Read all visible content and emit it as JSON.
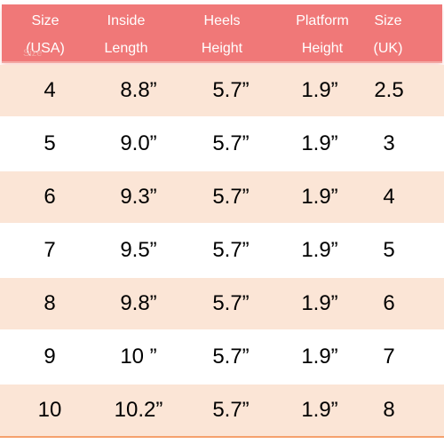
{
  "header": {
    "columns": [
      [
        "Size",
        "(USA)"
      ],
      [
        "Inside",
        "Length"
      ],
      [
        "Heels",
        "Height"
      ],
      [
        "Platform",
        "Height"
      ],
      [
        "Size",
        "(UK)"
      ]
    ],
    "stray_text": "Size"
  },
  "rows": [
    [
      "4",
      "8.8”",
      "5.7”",
      "1.9”",
      "2.5"
    ],
    [
      "5",
      "9.0”",
      "5.7”",
      "1.9”",
      "3"
    ],
    [
      "6",
      "9.3”",
      "5.7”",
      "1.9”",
      "4"
    ],
    [
      "7",
      "9.5”",
      "5.7”",
      "1.9”",
      "5"
    ],
    [
      "8",
      "9.8”",
      "5.7”",
      "1.9”",
      "6"
    ],
    [
      "9",
      "10 ”",
      "5.7”",
      "1.9”",
      "7"
    ],
    [
      "10",
      "10.2”",
      "5.7”",
      "1.9”",
      "8"
    ]
  ],
  "colors": {
    "header_bg": "#f07878",
    "header_text": "#ffffff",
    "row_shaded": "#fbe5d6",
    "row_plain": "#ffffff",
    "bottom_border": "#f5a16d"
  }
}
